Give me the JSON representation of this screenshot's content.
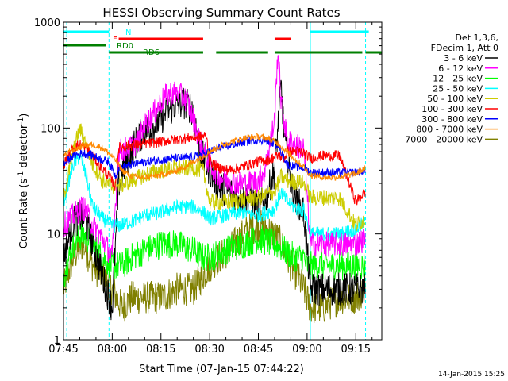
{
  "chart_data": {
    "type": "line",
    "title": "HESSI Observing Summary Count Rates",
    "xlabel": "Start Time (07-Jan-15 07:44:22)",
    "ylabel": "Count Rate (s-1 detector-1)",
    "ylabel_parts": {
      "main": "Count Rate (s",
      "sup1": "-1",
      "mid": " detector",
      "sup2": "-1",
      "end": ")"
    },
    "ylog": true,
    "ylim": [
      1,
      1000
    ],
    "xlim_min": [
      465,
      563
    ],
    "x_units": "minutes since 00:00 UT, 07-Jan-15",
    "xticks": [
      {
        "min": 465,
        "label": "07:45"
      },
      {
        "min": 480,
        "label": "08:00"
      },
      {
        "min": 495,
        "label": "08:15"
      },
      {
        "min": 510,
        "label": "08:30"
      },
      {
        "min": 525,
        "label": "08:45"
      },
      {
        "min": 540,
        "label": "09:00"
      },
      {
        "min": 555,
        "label": "09:15"
      }
    ],
    "yticks": [
      {
        "v": 1,
        "label": "1"
      },
      {
        "v": 10,
        "label": "10"
      },
      {
        "v": 100,
        "label": "100"
      },
      {
        "v": 1000,
        "label": "1000"
      }
    ],
    "legend": {
      "placement": "right",
      "header": [
        "Det 1,3,6,",
        "FDecim 1, Att 0"
      ]
    },
    "series": [
      {
        "name": "3 - 6 keV",
        "color": "#000000",
        "points": [
          [
            465,
            6
          ],
          [
            468,
            13
          ],
          [
            471,
            15
          ],
          [
            474,
            8
          ],
          [
            477,
            4
          ],
          [
            480,
            2
          ],
          [
            482,
            30
          ],
          [
            485,
            55
          ],
          [
            488,
            80
          ],
          [
            490,
            95
          ],
          [
            493,
            105
          ],
          [
            496,
            135
          ],
          [
            499,
            160
          ],
          [
            502,
            175
          ],
          [
            505,
            150
          ],
          [
            507,
            60
          ],
          [
            510,
            40
          ],
          [
            513,
            28
          ],
          [
            516,
            25
          ],
          [
            519,
            22
          ],
          [
            522,
            22
          ],
          [
            525,
            18
          ],
          [
            527,
            20
          ],
          [
            530,
            40
          ],
          [
            532,
            250
          ],
          [
            533,
            80
          ],
          [
            535,
            30
          ],
          [
            537,
            20
          ],
          [
            539,
            16
          ],
          [
            541,
            3
          ],
          [
            545,
            3
          ],
          [
            548,
            3
          ],
          [
            552,
            3
          ],
          [
            555,
            3
          ],
          [
            558,
            3
          ]
        ]
      },
      {
        "name": "6 - 12 keV",
        "color": "#ff00ff",
        "points": [
          [
            465,
            12
          ],
          [
            468,
            15
          ],
          [
            471,
            18
          ],
          [
            474,
            12
          ],
          [
            477,
            9
          ],
          [
            480,
            6
          ],
          [
            482,
            60
          ],
          [
            485,
            65
          ],
          [
            488,
            75
          ],
          [
            490,
            105
          ],
          [
            493,
            140
          ],
          [
            496,
            195
          ],
          [
            498,
            215
          ],
          [
            500,
            215
          ],
          [
            503,
            185
          ],
          [
            505,
            120
          ],
          [
            507,
            75
          ],
          [
            510,
            45
          ],
          [
            513,
            35
          ],
          [
            516,
            32
          ],
          [
            519,
            30
          ],
          [
            522,
            30
          ],
          [
            525,
            32
          ],
          [
            527,
            40
          ],
          [
            530,
            120
          ],
          [
            531,
            560
          ],
          [
            532,
            180
          ],
          [
            534,
            75
          ],
          [
            536,
            70
          ],
          [
            539,
            64
          ],
          [
            541,
            8
          ],
          [
            545,
            8
          ],
          [
            548,
            8
          ],
          [
            552,
            8
          ],
          [
            555,
            8
          ],
          [
            558,
            9
          ]
        ]
      },
      {
        "name": "12 - 25 keV",
        "color": "#00ff00",
        "points": [
          [
            465,
            4
          ],
          [
            468,
            8
          ],
          [
            471,
            10
          ],
          [
            474,
            8
          ],
          [
            477,
            6
          ],
          [
            480,
            5
          ],
          [
            483,
            5
          ],
          [
            486,
            6
          ],
          [
            490,
            7
          ],
          [
            495,
            8
          ],
          [
            500,
            8
          ],
          [
            505,
            7
          ],
          [
            508,
            6
          ],
          [
            510,
            6
          ],
          [
            515,
            7
          ],
          [
            520,
            8
          ],
          [
            525,
            9
          ],
          [
            530,
            8
          ],
          [
            533,
            7
          ],
          [
            536,
            6
          ],
          [
            539,
            6
          ],
          [
            540,
            5
          ],
          [
            545,
            5
          ],
          [
            550,
            5
          ],
          [
            555,
            5
          ],
          [
            558,
            5
          ]
        ]
      },
      {
        "name": "25 - 50 keV",
        "color": "#00ffff",
        "points": [
          [
            465,
            20
          ],
          [
            468,
            45
          ],
          [
            470,
            55
          ],
          [
            472,
            35
          ],
          [
            474,
            18
          ],
          [
            477,
            14
          ],
          [
            480,
            12
          ],
          [
            482,
            12
          ],
          [
            486,
            13
          ],
          [
            490,
            15
          ],
          [
            495,
            16
          ],
          [
            500,
            18
          ],
          [
            505,
            18
          ],
          [
            508,
            16
          ],
          [
            510,
            14
          ],
          [
            515,
            15
          ],
          [
            520,
            16
          ],
          [
            525,
            15
          ],
          [
            530,
            17
          ],
          [
            532,
            25
          ],
          [
            534,
            20
          ],
          [
            537,
            17
          ],
          [
            539,
            17
          ],
          [
            541,
            10
          ],
          [
            545,
            10
          ],
          [
            550,
            10
          ],
          [
            555,
            11
          ],
          [
            558,
            13
          ]
        ]
      },
      {
        "name": "50 - 100 keV",
        "color": "#cccc00",
        "points": [
          [
            465,
            22
          ],
          [
            468,
            60
          ],
          [
            470,
            100
          ],
          [
            472,
            70
          ],
          [
            474,
            45
          ],
          [
            477,
            32
          ],
          [
            480,
            28
          ],
          [
            482,
            28
          ],
          [
            486,
            32
          ],
          [
            490,
            36
          ],
          [
            495,
            40
          ],
          [
            500,
            42
          ],
          [
            505,
            42
          ],
          [
            508,
            40
          ],
          [
            510,
            20
          ],
          [
            515,
            20
          ],
          [
            520,
            21
          ],
          [
            525,
            22
          ],
          [
            530,
            25
          ],
          [
            532,
            35
          ],
          [
            534,
            32
          ],
          [
            537,
            31
          ],
          [
            539,
            30
          ],
          [
            541,
            22
          ],
          [
            545,
            22
          ],
          [
            550,
            22
          ],
          [
            555,
            12
          ],
          [
            558,
            14
          ]
        ]
      },
      {
        "name": "100 - 300 keV",
        "color": "#ff0000",
        "points": [
          [
            465,
            45
          ],
          [
            468,
            65
          ],
          [
            470,
            70
          ],
          [
            473,
            60
          ],
          [
            476,
            45
          ],
          [
            479,
            35
          ],
          [
            481,
            28
          ],
          [
            482,
            65
          ],
          [
            485,
            68
          ],
          [
            488,
            70
          ],
          [
            492,
            72
          ],
          [
            496,
            75
          ],
          [
            500,
            78
          ],
          [
            503,
            80
          ],
          [
            506,
            82
          ],
          [
            509,
            85
          ],
          [
            510,
            48
          ],
          [
            513,
            42
          ],
          [
            516,
            40
          ],
          [
            519,
            42
          ],
          [
            522,
            45
          ],
          [
            525,
            48
          ],
          [
            528,
            50
          ],
          [
            531,
            55
          ],
          [
            533,
            52
          ],
          [
            534,
            60
          ],
          [
            537,
            60
          ],
          [
            539,
            58
          ],
          [
            541,
            52
          ],
          [
            545,
            55
          ],
          [
            550,
            55
          ],
          [
            555,
            20
          ],
          [
            558,
            25
          ]
        ]
      },
      {
        "name": "300 - 800 keV",
        "color": "#0000ff",
        "points": [
          [
            465,
            45
          ],
          [
            468,
            55
          ],
          [
            471,
            58
          ],
          [
            474,
            55
          ],
          [
            477,
            50
          ],
          [
            479,
            48
          ],
          [
            481,
            35
          ],
          [
            482,
            42
          ],
          [
            486,
            45
          ],
          [
            490,
            48
          ],
          [
            495,
            50
          ],
          [
            500,
            52
          ],
          [
            505,
            53
          ],
          [
            510,
            60
          ],
          [
            513,
            65
          ],
          [
            516,
            68
          ],
          [
            519,
            72
          ],
          [
            522,
            75
          ],
          [
            525,
            78
          ],
          [
            528,
            75
          ],
          [
            531,
            70
          ],
          [
            532,
            60
          ],
          [
            534,
            45
          ],
          [
            537,
            43
          ],
          [
            539,
            42
          ],
          [
            541,
            38
          ],
          [
            545,
            38
          ],
          [
            550,
            38
          ],
          [
            555,
            38
          ],
          [
            558,
            40
          ]
        ]
      },
      {
        "name": "800 - 7000 keV",
        "color": "#ff8800",
        "points": [
          [
            465,
            55
          ],
          [
            468,
            62
          ],
          [
            471,
            68
          ],
          [
            474,
            70
          ],
          [
            477,
            65
          ],
          [
            479,
            58
          ],
          [
            481,
            50
          ],
          [
            483,
            40
          ],
          [
            486,
            35
          ],
          [
            489,
            34
          ],
          [
            492,
            35
          ],
          [
            495,
            36
          ],
          [
            498,
            38
          ],
          [
            501,
            41
          ],
          [
            504,
            46
          ],
          [
            507,
            52
          ],
          [
            510,
            60
          ],
          [
            513,
            67
          ],
          [
            516,
            73
          ],
          [
            519,
            78
          ],
          [
            522,
            82
          ],
          [
            525,
            83
          ],
          [
            528,
            80
          ],
          [
            531,
            72
          ],
          [
            533,
            63
          ],
          [
            535,
            55
          ],
          [
            537,
            48
          ],
          [
            539,
            43
          ],
          [
            541,
            36
          ],
          [
            545,
            34
          ],
          [
            548,
            34
          ],
          [
            551,
            35
          ],
          [
            555,
            37
          ],
          [
            558,
            42
          ]
        ]
      },
      {
        "name": "7000 - 20000 keV",
        "color": "#808000",
        "points": [
          [
            465,
            3
          ],
          [
            468,
            6
          ],
          [
            471,
            8
          ],
          [
            474,
            5
          ],
          [
            477,
            4
          ],
          [
            480,
            3
          ],
          [
            483,
            2
          ],
          [
            486,
            2.5
          ],
          [
            490,
            2.5
          ],
          [
            495,
            2.5
          ],
          [
            500,
            3
          ],
          [
            505,
            3
          ],
          [
            510,
            5
          ],
          [
            513,
            6
          ],
          [
            516,
            7
          ],
          [
            519,
            9
          ],
          [
            522,
            11
          ],
          [
            525,
            12
          ],
          [
            528,
            11
          ],
          [
            531,
            9
          ],
          [
            533,
            7
          ],
          [
            535,
            5
          ],
          [
            537,
            4
          ],
          [
            539,
            3
          ],
          [
            541,
            2
          ],
          [
            545,
            2
          ],
          [
            550,
            2.5
          ],
          [
            555,
            2.5
          ],
          [
            558,
            3
          ]
        ]
      }
    ],
    "flag_bars": [
      {
        "label": "N",
        "color": "#00ffff",
        "segments": [
          [
            465,
            479
          ],
          [
            541,
            559
          ]
        ],
        "level": 0
      },
      {
        "label": "F",
        "color": "#ff0000",
        "segments": [
          [
            482,
            508
          ],
          [
            530,
            535
          ]
        ],
        "level": 1
      },
      {
        "label": "RD0",
        "color": "#008000",
        "segments": [
          [
            465,
            478
          ]
        ],
        "level": 2
      },
      {
        "label": "RD6",
        "color": "#008000",
        "segments": [
          [
            479,
            508
          ],
          [
            512,
            528
          ],
          [
            530,
            557
          ],
          [
            558,
            563
          ]
        ],
        "level": 3
      }
    ],
    "vertical_markers": [
      {
        "min": 466,
        "style": "dashed",
        "color": "#00ffff"
      },
      {
        "min": 479,
        "style": "dashed",
        "color": "#00ffff"
      },
      {
        "min": 541,
        "style": "solid",
        "color": "#00ffff"
      },
      {
        "min": 558,
        "style": "dashed",
        "color": "#00ffff"
      }
    ]
  },
  "footer_timestamp": "14-Jan-2015 15:25"
}
